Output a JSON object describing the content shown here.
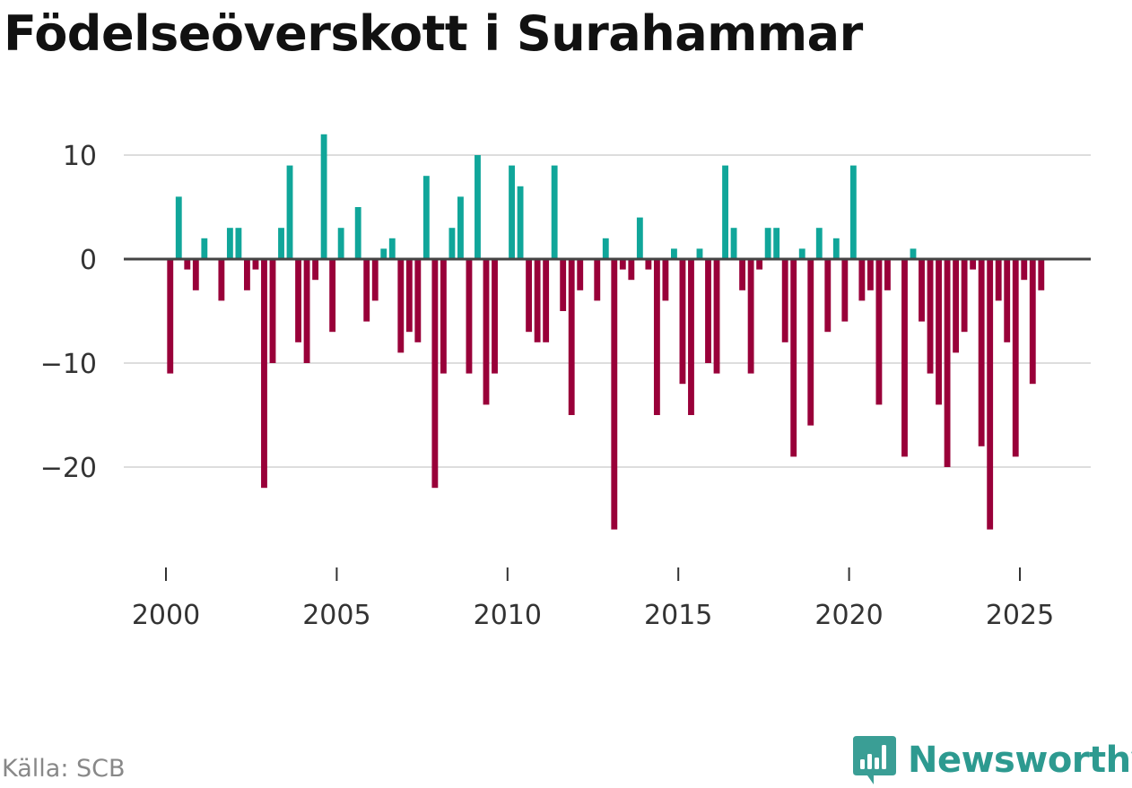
{
  "title": "Födelseöverskott i Surahammar",
  "source": "Källa: SCB",
  "brand": {
    "name": "Newsworthy",
    "color": "#2d9a90"
  },
  "colors": {
    "positive": "#10a69a",
    "negative": "#990039",
    "grid": "#dddddd",
    "zero": "#444444"
  },
  "chart_data": {
    "type": "bar",
    "title": "Födelseöverskott i Surahammar",
    "xlabel": "",
    "ylabel": "",
    "ylim": [
      -29,
      15
    ],
    "xlim": [
      1999.6,
      2026.45
    ],
    "y_ticks": [
      10,
      0,
      -10,
      -20
    ],
    "y_tick_labels": [
      "10",
      "0",
      "−10",
      "−20"
    ],
    "x_ticks": [
      2000,
      2005,
      2010,
      2015,
      2020,
      2025
    ],
    "x_tick_labels": [
      "2000",
      "2005",
      "2010",
      "2015",
      "2020",
      "2025"
    ],
    "bar_width_years": 0.18,
    "series": [
      {
        "name": "Födelseöverskott",
        "x": [
          2000.125,
          2000.375,
          2000.625,
          2000.875,
          2001.125,
          2001.375,
          2001.625,
          2001.875,
          2002.125,
          2002.375,
          2002.625,
          2002.875,
          2003.125,
          2003.375,
          2003.625,
          2003.875,
          2004.125,
          2004.375,
          2004.625,
          2004.875,
          2005.125,
          2005.375,
          2005.625,
          2005.875,
          2006.125,
          2006.375,
          2006.625,
          2006.875,
          2007.125,
          2007.375,
          2007.625,
          2007.875,
          2008.125,
          2008.375,
          2008.625,
          2008.875,
          2009.125,
          2009.375,
          2009.625,
          2009.875,
          2010.125,
          2010.375,
          2010.625,
          2010.875,
          2011.125,
          2011.375,
          2011.625,
          2011.875,
          2012.125,
          2012.375,
          2012.625,
          2012.875,
          2013.125,
          2013.375,
          2013.625,
          2013.875,
          2014.125,
          2014.375,
          2014.625,
          2014.875,
          2015.125,
          2015.375,
          2015.625,
          2015.875,
          2016.125,
          2016.375,
          2016.625,
          2016.875,
          2017.125,
          2017.375,
          2017.625,
          2017.875,
          2018.125,
          2018.375,
          2018.625,
          2018.875,
          2019.125,
          2019.375,
          2019.625,
          2019.875,
          2020.125,
          2020.375,
          2020.625,
          2020.875,
          2021.125,
          2021.375,
          2021.625,
          2021.875,
          2022.125,
          2022.375,
          2022.625,
          2022.875,
          2023.125,
          2023.375,
          2023.625,
          2023.875,
          2024.125,
          2024.375,
          2024.625,
          2024.875,
          2025.125,
          2025.375,
          2025.625
        ],
        "values": [
          -11,
          6,
          -1,
          -3,
          2,
          0,
          -4,
          3,
          3,
          -3,
          -1,
          -22,
          -10,
          3,
          9,
          -8,
          -10,
          -2,
          12,
          -7,
          3,
          0,
          5,
          -6,
          -4,
          1,
          2,
          -9,
          -7,
          -8,
          8,
          -22,
          -11,
          3,
          6,
          -11,
          10,
          -14,
          -11,
          0,
          9,
          7,
          -7,
          -8,
          -8,
          9,
          -5,
          -15,
          -3,
          0,
          -4,
          2,
          -26,
          -1,
          -2,
          4,
          -1,
          -15,
          -4,
          1,
          -12,
          -15,
          1,
          -10,
          -11,
          9,
          3,
          -3,
          -11,
          -1,
          3,
          3,
          -8,
          -19,
          1,
          -16,
          3,
          -7,
          2,
          -6,
          9,
          -4,
          -3,
          -14,
          -3,
          0,
          -19,
          1,
          -6,
          -11,
          -14,
          -20,
          -9,
          -7,
          -1,
          -18,
          -26,
          -4,
          -8,
          -19,
          -2,
          -12,
          -3
        ]
      }
    ]
  }
}
